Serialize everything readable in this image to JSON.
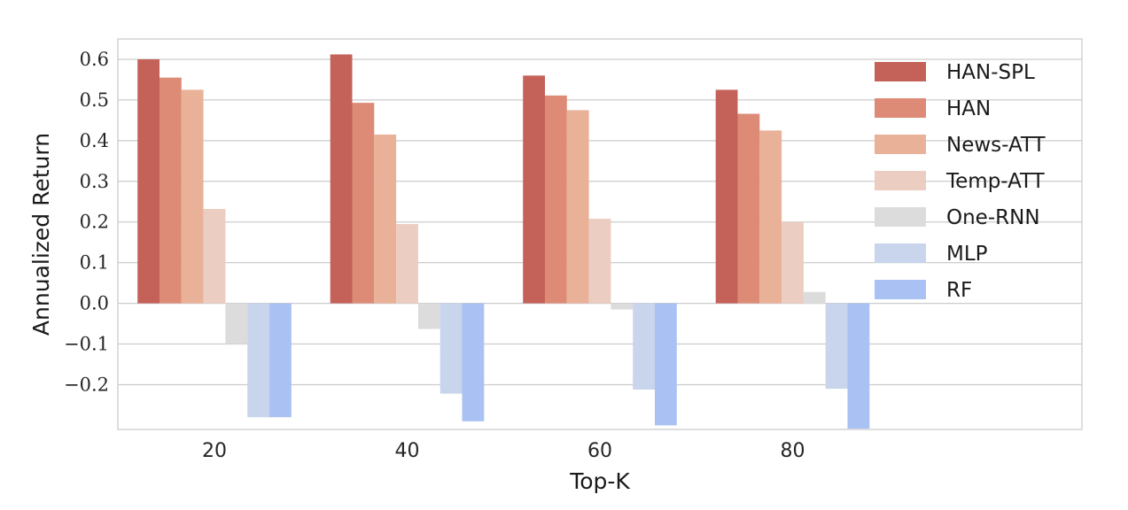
{
  "chart_data": {
    "type": "bar",
    "xlabel": "Top-K",
    "ylabel": "Annualized Return",
    "categories": [
      "20",
      "40",
      "60",
      "80"
    ],
    "ylim": [
      -0.31,
      0.65
    ],
    "yticks": [
      -0.2,
      -0.1,
      0.0,
      0.1,
      0.2,
      0.3,
      0.4,
      0.5,
      0.6
    ],
    "ytick_labels": [
      "−0.2",
      "−0.1",
      "0.0",
      "0.1",
      "0.2",
      "0.3",
      "0.4",
      "0.5",
      "0.6"
    ],
    "grid": true,
    "legend_position": "top-right",
    "series": [
      {
        "name": "HAN-SPL",
        "color": "#c4625a",
        "values": [
          0.6,
          0.612,
          0.56,
          0.525
        ]
      },
      {
        "name": "HAN",
        "color": "#dd8b77",
        "values": [
          0.555,
          0.493,
          0.511,
          0.466
        ]
      },
      {
        "name": "News-ATT",
        "color": "#eab199",
        "values": [
          0.525,
          0.415,
          0.475,
          0.425
        ]
      },
      {
        "name": "Temp-ATT",
        "color": "#ebcdc1",
        "values": [
          0.232,
          0.195,
          0.208,
          0.2
        ]
      },
      {
        "name": "One-RNN",
        "color": "#dcdcdc",
        "values": [
          -0.1,
          -0.063,
          -0.015,
          0.028
        ]
      },
      {
        "name": "MLP",
        "color": "#c8d5ed",
        "values": [
          -0.28,
          -0.222,
          -0.212,
          -0.21
        ]
      },
      {
        "name": "RF",
        "color": "#a9c1f3",
        "values": [
          -0.28,
          -0.29,
          -0.3,
          -0.308
        ]
      }
    ]
  }
}
